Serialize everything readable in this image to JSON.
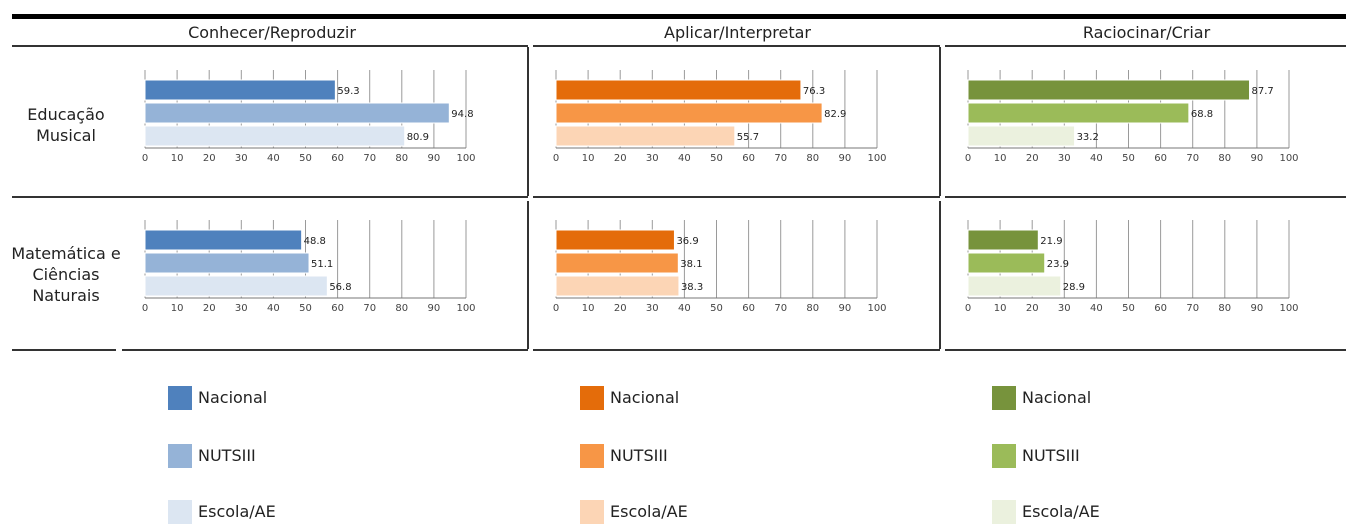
{
  "chart_data": {
    "type": "bar",
    "orientation": "horizontal",
    "xlim": [
      0,
      100
    ],
    "ticks": [
      "0",
      "10",
      "20",
      "30",
      "40",
      "50",
      "60",
      "70",
      "80",
      "90",
      "100"
    ],
    "grid": true,
    "column_headers": [
      "Conhecer/Reproduzir",
      "Aplicar/Interpretar",
      "Raciocinar/Criar"
    ],
    "row_headers": [
      "Educação Musical",
      "Matemática e Ciências Naturais"
    ],
    "series_names": [
      "Nacional",
      "NUTSIII",
      "Escola/AE"
    ],
    "palettes": [
      [
        "#4f81bd",
        "#95b3d7",
        "#dce6f2"
      ],
      [
        "#e46c0a",
        "#f79646",
        "#fcd5b5"
      ],
      [
        "#77933c",
        "#9bbb59",
        "#ebf1de"
      ]
    ],
    "panels": [
      [
        [
          59.3,
          94.8,
          80.9
        ],
        [
          76.3,
          82.9,
          55.7
        ],
        [
          87.7,
          68.8,
          33.2
        ]
      ],
      [
        [
          48.8,
          51.1,
          56.8
        ],
        [
          36.9,
          38.1,
          38.3
        ],
        [
          21.9,
          23.9,
          28.9
        ]
      ]
    ],
    "value_labels": [
      [
        [
          "59.3",
          "94.8",
          "80.9"
        ],
        [
          "76.3",
          "82.9",
          "55.7"
        ],
        [
          "87.7",
          "68.8",
          "33.2"
        ]
      ],
      [
        [
          "48.8",
          "51.1",
          "56.8"
        ],
        [
          "36.9",
          "38.1",
          "38.3"
        ],
        [
          "21.9",
          "23.9",
          "28.9"
        ]
      ]
    ]
  },
  "legend": [
    {
      "label": "Nacional"
    },
    {
      "label": "NUTSIII"
    },
    {
      "label": "Escola/AE"
    }
  ]
}
